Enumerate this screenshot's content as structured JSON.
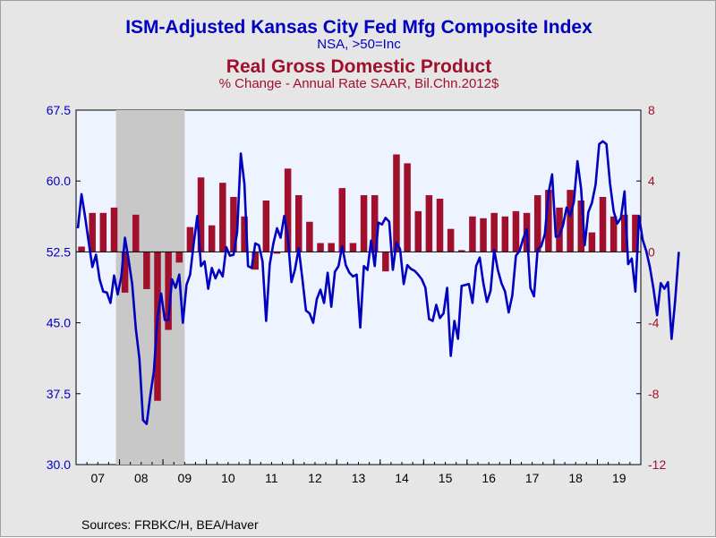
{
  "titles": {
    "line1": "ISM-Adjusted Kansas City Fed Mfg Composite Index",
    "line2": "NSA, >50=Inc",
    "line3": "Real Gross Domestic Product",
    "line4": "% Change - Annual Rate     SAAR, Bil.Chn.2012$"
  },
  "source": "Sources:  FRBKC/H, BEA/Haver",
  "colors": {
    "line": "#0000c0",
    "bars": "#a0102c",
    "recession": "#c8c8c8",
    "plot_bg": "#eef4ff"
  },
  "chart_data": {
    "type": "line",
    "x_axis": {
      "ticks": [
        "07",
        "08",
        "09",
        "10",
        "11",
        "12",
        "13",
        "14",
        "15",
        "16",
        "17",
        "18",
        "19"
      ],
      "start": "2007-01",
      "end": "2019-12"
    },
    "left_axis": {
      "ticks": [
        "67.5",
        "60.0",
        "52.5",
        "45.0",
        "37.5",
        "30.0"
      ],
      "ylim": [
        30,
        67.5
      ]
    },
    "right_axis": {
      "ticks": [
        "8",
        "4",
        "0",
        "-4",
        "-8",
        "-12"
      ],
      "ylim": [
        -12,
        8
      ]
    },
    "recession": {
      "start": "2007-12",
      "end": "2009-06"
    },
    "bars": {
      "axis": "right",
      "quarters": [
        "2007Q1",
        "2007Q2",
        "2007Q3",
        "2007Q4",
        "2008Q1",
        "2008Q2",
        "2008Q3",
        "2008Q4",
        "2009Q1",
        "2009Q2",
        "2009Q3",
        "2009Q4",
        "2010Q1",
        "2010Q2",
        "2010Q3",
        "2010Q4",
        "2011Q1",
        "2011Q2",
        "2011Q3",
        "2011Q4",
        "2012Q1",
        "2012Q2",
        "2012Q3",
        "2012Q4",
        "2013Q1",
        "2013Q2",
        "2013Q3",
        "2013Q4",
        "2014Q1",
        "2014Q2",
        "2014Q3",
        "2014Q4",
        "2015Q1",
        "2015Q2",
        "2015Q3",
        "2015Q4",
        "2016Q1",
        "2016Q2",
        "2016Q3",
        "2016Q4",
        "2017Q1",
        "2017Q2",
        "2017Q3",
        "2017Q4",
        "2018Q1",
        "2018Q2",
        "2018Q3",
        "2018Q4",
        "2019Q1",
        "2019Q2",
        "2019Q3",
        "2019Q4"
      ],
      "values": [
        0.3,
        2.2,
        2.2,
        2.5,
        -2.3,
        2.1,
        -2.1,
        -8.4,
        -4.4,
        -0.6,
        1.4,
        4.2,
        1.5,
        3.9,
        3.1,
        2.0,
        -1.0,
        2.9,
        -0.1,
        4.7,
        3.2,
        1.7,
        0.5,
        0.5,
        3.6,
        0.5,
        3.2,
        3.2,
        -1.1,
        5.5,
        5.0,
        2.3,
        3.2,
        3.0,
        1.3,
        0.1,
        2.0,
        1.9,
        2.2,
        2.0,
        2.3,
        2.2,
        3.2,
        3.5,
        2.5,
        3.5,
        2.9,
        1.1,
        3.1,
        2.0,
        2.1,
        2.1
      ]
    },
    "line": {
      "name": "ISM-Adjusted Kansas City Fed Mfg Composite Index",
      "axis": "left",
      "values": [
        55.0,
        58.6,
        56.2,
        53.5,
        50.9,
        52.2,
        49.6,
        48.3,
        48.2,
        47.1,
        50.0,
        48.0,
        49.9,
        54.0,
        51.7,
        49.1,
        44.4,
        41.2,
        34.7,
        34.3,
        37.3,
        39.9,
        45.6,
        48.1,
        45.3,
        45.3,
        49.6,
        48.7,
        50.1,
        45.0,
        49.0,
        50.1,
        53.4,
        56.3,
        51.0,
        51.5,
        48.6,
        50.8,
        49.7,
        50.6,
        49.9,
        53.0,
        52.1,
        52.2,
        54.6,
        62.9,
        59.7,
        51.0,
        50.8,
        53.4,
        53.2,
        51.5,
        45.2,
        51.2,
        53.4,
        55.0,
        54.0,
        56.3,
        54.0,
        49.3,
        50.7,
        52.9,
        49.7,
        46.3,
        46.0,
        45.0,
        47.5,
        48.5,
        47.1,
        50.3,
        46.7,
        50.4,
        51.0,
        53.1,
        51.1,
        50.3,
        49.9,
        50.1,
        44.5,
        51.0,
        50.6,
        53.7,
        51.0,
        55.6,
        55.4,
        56.1,
        55.7,
        50.6,
        53.5,
        52.8,
        49.1,
        51.1,
        50.7,
        50.5,
        50.1,
        49.6,
        48.7,
        45.4,
        45.2,
        46.9,
        45.5,
        46.0,
        48.7,
        41.5,
        45.2,
        43.3,
        48.9,
        49.0,
        49.1,
        47.1,
        51.0,
        51.9,
        49.2,
        47.2,
        48.4,
        52.7,
        50.6,
        49.2,
        48.3,
        46.1,
        47.9,
        52.1,
        52.6,
        53.9,
        54.9,
        48.7,
        47.8,
        52.8,
        53.1,
        54.4,
        58.7,
        60.7,
        54.1,
        54.2,
        55.3,
        57.2,
        56.3,
        57.8,
        62.1,
        59.2,
        53.2,
        56.7,
        57.7,
        59.6,
        63.9,
        64.2,
        63.9,
        59.7,
        56.8,
        55.5,
        56.1,
        58.9,
        51.2,
        51.8,
        48.3,
        56.3,
        53.8,
        52.6,
        50.9,
        48.6,
        45.8,
        49.2,
        48.6,
        49.3,
        43.3,
        47.4,
        52.5
      ]
    }
  }
}
